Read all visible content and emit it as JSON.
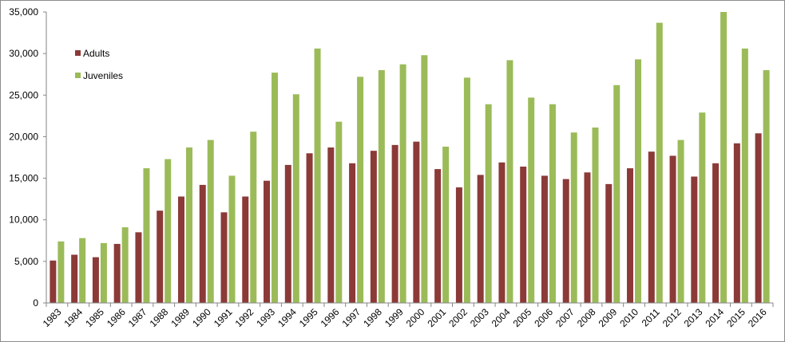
{
  "chart_data": {
    "type": "bar",
    "title": "",
    "xlabel": "",
    "ylabel": "",
    "ylim": [
      0,
      35000
    ],
    "yticks": [
      0,
      5000,
      10000,
      15000,
      20000,
      25000,
      30000,
      35000
    ],
    "ytick_labels": [
      "0",
      "5,000",
      "10,000",
      "15,000",
      "20,000",
      "25,000",
      "30,000",
      "35,000"
    ],
    "grid": false,
    "legend_position": "top-left",
    "categories": [
      "1983",
      "1984",
      "1985",
      "1986",
      "1987",
      "1988",
      "1989",
      "1990",
      "1991",
      "1992",
      "1993",
      "1994",
      "1995",
      "1996",
      "1997",
      "1998",
      "1999",
      "2000",
      "2001",
      "2002",
      "2003",
      "2004",
      "2005",
      "2006",
      "2007",
      "2008",
      "2009",
      "2010",
      "2011",
      "2012",
      "2013",
      "2014",
      "2015",
      "2016"
    ],
    "series": [
      {
        "name": "Adults",
        "color": "#8b3a38",
        "values": [
          5100,
          5800,
          5500,
          7100,
          8500,
          11100,
          12800,
          14200,
          10900,
          12800,
          14700,
          16600,
          18000,
          18700,
          16800,
          18300,
          19000,
          19400,
          16100,
          13900,
          15400,
          16900,
          16400,
          15300,
          14900,
          15700,
          14300,
          16200,
          18200,
          17700,
          15200,
          16800,
          19200,
          20400
        ]
      },
      {
        "name": "Juveniles",
        "color": "#9bbb59",
        "values": [
          7400,
          7800,
          7200,
          9100,
          16200,
          17300,
          18700,
          19600,
          15300,
          20600,
          27700,
          25100,
          30600,
          21800,
          27200,
          28000,
          28700,
          29800,
          18800,
          27100,
          23900,
          29200,
          24700,
          23900,
          20500,
          21100,
          26200,
          29300,
          33700,
          19600,
          22900,
          35000,
          30600,
          28000
        ]
      }
    ]
  }
}
